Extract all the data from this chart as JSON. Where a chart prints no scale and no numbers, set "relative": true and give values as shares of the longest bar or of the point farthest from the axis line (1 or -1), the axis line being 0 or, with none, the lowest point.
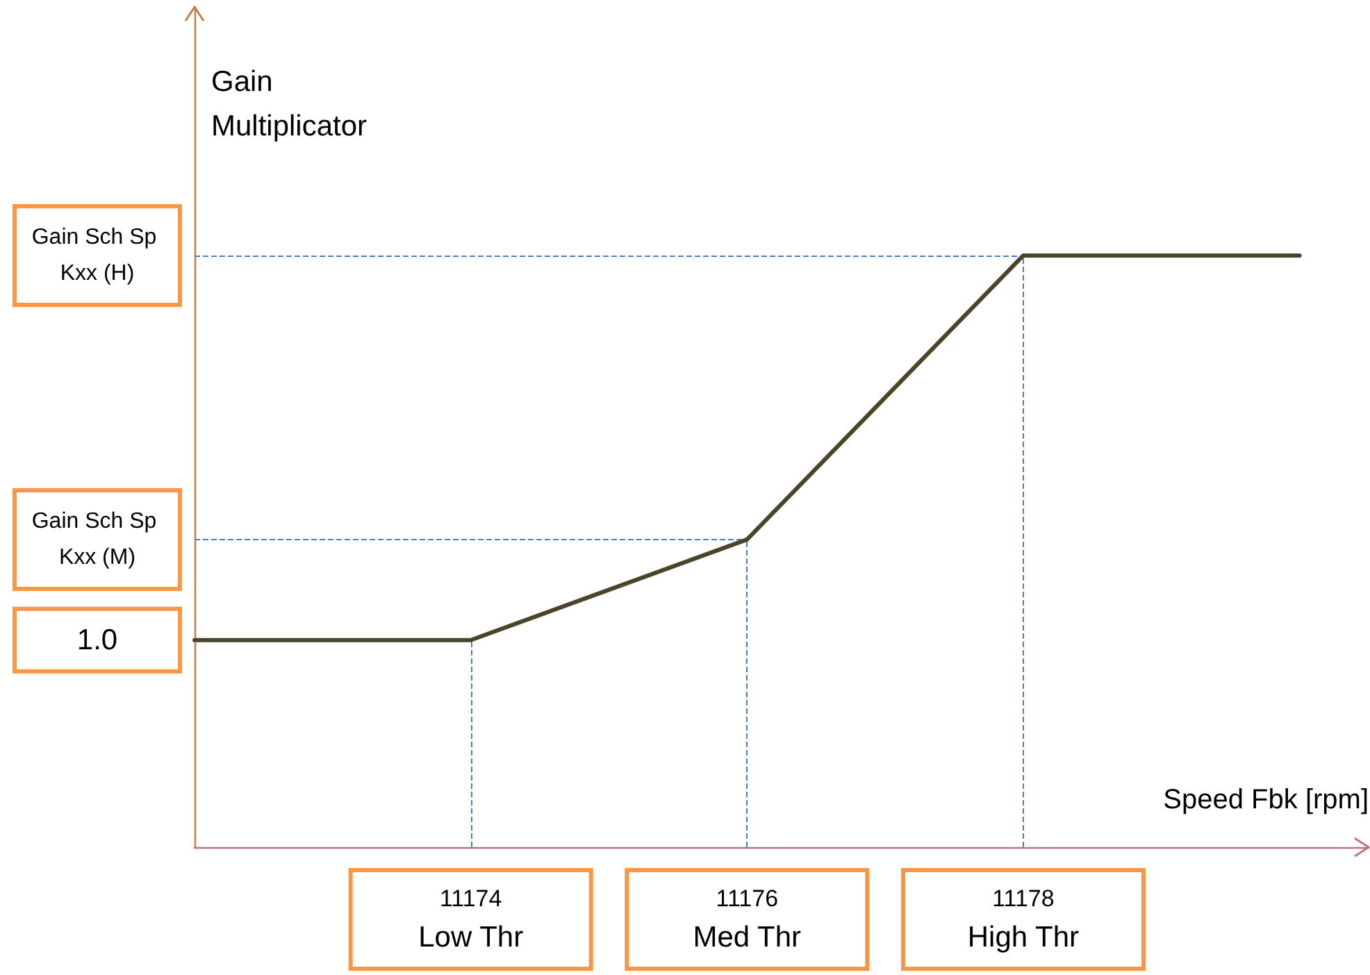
{
  "chart_data": {
    "type": "line",
    "xlabel": "Speed Fbk [rpm]",
    "ylabel": "Gain Multiplicator",
    "relative": true,
    "marker": "none",
    "x": [
      11172,
      11174,
      11176,
      11178,
      11180
    ],
    "series": [
      {
        "color": "#4a452a",
        "values": [
          0.35,
          0.35,
          0.52,
          1,
          1
        ]
      }
    ],
    "xlim": [
      11172,
      11180.5
    ],
    "xticks": [
      {
        "value": 11174,
        "label": "11174 Low Thr"
      },
      {
        "value": 11176,
        "label": "11176 Med Thr"
      },
      {
        "value": 11178,
        "label": "11178 High Thr"
      }
    ],
    "ref_lines": [
      {
        "axis": "y",
        "value": 0.52,
        "label": "Gain Sch Sp Kxx (M)",
        "color": "#4a7ebb",
        "line_style": "dashed"
      },
      {
        "axis": "y",
        "value": 1,
        "label": "Gain Sch Sp Kxx (H)",
        "color": "#4a7ebb",
        "line_style": "dashed"
      },
      {
        "axis": "x",
        "value": 11174,
        "color": "#4a7ebb",
        "line_style": "dashed"
      },
      {
        "axis": "x",
        "value": 11176,
        "color": "#4a7ebb",
        "line_style": "dashed"
      },
      {
        "axis": "x",
        "value": 11178,
        "color": "#4a7ebb",
        "line_style": "dashed"
      }
    ],
    "annotations": [
      {
        "text": "1.0",
        "x": 11172,
        "y": 0.35
      }
    ]
  }
}
